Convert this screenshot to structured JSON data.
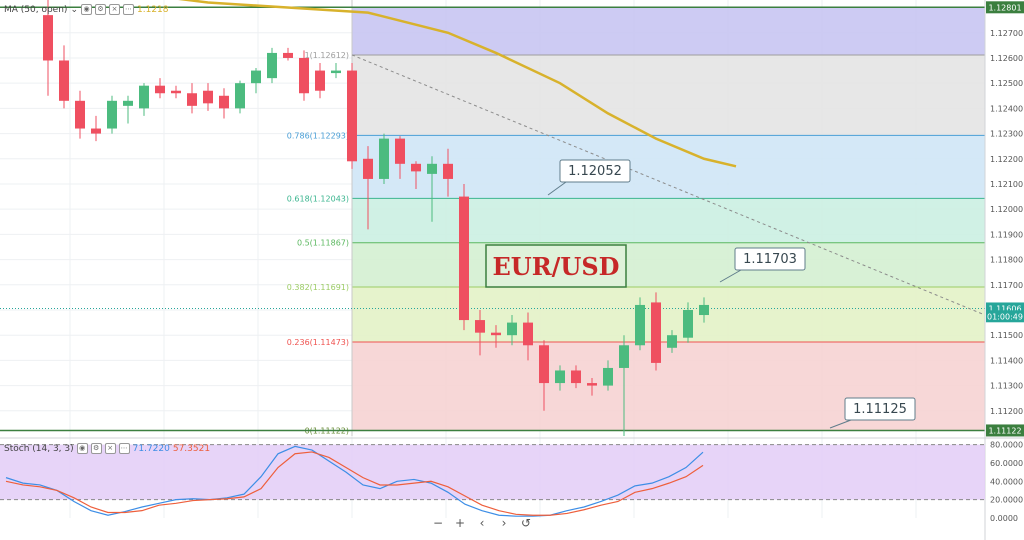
{
  "main_legend": {
    "indicator": "MA (50, open)",
    "value": "1.1218",
    "value_color": "#d8b22c"
  },
  "stoch_legend": {
    "indicator": "Stoch (14, 3, 3)",
    "k_value": "71.7220",
    "d_value": "57.3521",
    "k_color": "#3d8ee6",
    "d_color": "#ee5f3c"
  },
  "chart_data": [
    {
      "type": "candlestick",
      "title": "EUR/USD",
      "ylim": [
        1.111,
        1.1283
      ],
      "y_ticks": [
        "1.12700",
        "1.12600",
        "1.12500",
        "1.12400",
        "1.12300",
        "1.12200",
        "1.12100",
        "1.12000",
        "1.11900",
        "1.11800",
        "1.11700",
        "1.11600",
        "1.11500",
        "1.11400",
        "1.11300",
        "1.11200"
      ],
      "price_tags": [
        {
          "label": "1.12801",
          "value": 1.12801
        },
        {
          "label": "1.11606",
          "value": 1.11606
        },
        {
          "label": "01:00:49",
          "value": 1.11575
        },
        {
          "label": "1.11122",
          "value": 1.11122
        }
      ],
      "fib_levels": [
        {
          "label": "1(1.12612)",
          "value": 1.12612,
          "color": "#9e9e9e"
        },
        {
          "label": "0.786(1.12293)",
          "value": 1.12293,
          "color": "#4a9fd6"
        },
        {
          "label": "0.618(1.12043)",
          "value": 1.12043,
          "color": "#3bb58f"
        },
        {
          "label": "0.5(1.11867)",
          "value": 1.11867,
          "color": "#5cb860"
        },
        {
          "label": "0.382(1.11691)",
          "value": 1.11691,
          "color": "#9ccc65"
        },
        {
          "label": "0.236(1.11473)",
          "value": 1.11473,
          "color": "#ef5350"
        },
        {
          "label": "0(1.11122)",
          "value": 1.11122,
          "color": "#6a8e3a"
        }
      ],
      "callouts": [
        {
          "label": "1.12052",
          "value": 1.12052
        },
        {
          "label": "1.11703",
          "value": 1.11703
        },
        {
          "label": "1.11125",
          "value": 1.11125
        }
      ],
      "ma": [
        [
          0,
          1.129
        ],
        [
          10,
          1.1282
        ],
        [
          20,
          1.1278
        ],
        [
          25,
          1.127
        ],
        [
          28,
          1.1262
        ],
        [
          32,
          1.125
        ],
        [
          35,
          1.1238
        ],
        [
          38,
          1.1228
        ],
        [
          41,
          1.122
        ],
        [
          43,
          1.1217
        ]
      ],
      "candles": [
        {
          "o": 1.1277,
          "h": 1.1285,
          "l": 1.1245,
          "c": 1.1259
        },
        {
          "o": 1.1259,
          "h": 1.1265,
          "l": 1.124,
          "c": 1.1243
        },
        {
          "o": 1.1243,
          "h": 1.1247,
          "l": 1.1228,
          "c": 1.1232
        },
        {
          "o": 1.1232,
          "h": 1.1237,
          "l": 1.1227,
          "c": 1.123
        },
        {
          "o": 1.1232,
          "h": 1.1245,
          "l": 1.123,
          "c": 1.1243
        },
        {
          "o": 1.1241,
          "h": 1.1245,
          "l": 1.1234,
          "c": 1.1243
        },
        {
          "o": 1.124,
          "h": 1.125,
          "l": 1.1237,
          "c": 1.1249
        },
        {
          "o": 1.1249,
          "h": 1.1252,
          "l": 1.1244,
          "c": 1.1246
        },
        {
          "o": 1.1247,
          "h": 1.1249,
          "l": 1.1244,
          "c": 1.1246
        },
        {
          "o": 1.1246,
          "h": 1.125,
          "l": 1.1238,
          "c": 1.1241
        },
        {
          "o": 1.1247,
          "h": 1.125,
          "l": 1.1239,
          "c": 1.1242
        },
        {
          "o": 1.1245,
          "h": 1.1248,
          "l": 1.1236,
          "c": 1.124
        },
        {
          "o": 1.124,
          "h": 1.1251,
          "l": 1.1238,
          "c": 1.125
        },
        {
          "o": 1.125,
          "h": 1.1256,
          "l": 1.1246,
          "c": 1.1255
        },
        {
          "o": 1.1252,
          "h": 1.1264,
          "l": 1.125,
          "c": 1.1262
        },
        {
          "o": 1.1262,
          "h": 1.1264,
          "l": 1.1259,
          "c": 1.126
        },
        {
          "o": 1.126,
          "h": 1.1263,
          "l": 1.1243,
          "c": 1.1246
        },
        {
          "o": 1.1255,
          "h": 1.1258,
          "l": 1.1244,
          "c": 1.1247
        },
        {
          "o": 1.1254,
          "h": 1.1258,
          "l": 1.1252,
          "c": 1.1255
        },
        {
          "o": 1.1255,
          "h": 1.1258,
          "l": 1.1216,
          "c": 1.1219
        },
        {
          "o": 1.122,
          "h": 1.1225,
          "l": 1.1192,
          "c": 1.1212
        },
        {
          "o": 1.1212,
          "h": 1.123,
          "l": 1.121,
          "c": 1.1228
        },
        {
          "o": 1.1228,
          "h": 1.1229,
          "l": 1.1212,
          "c": 1.1218
        },
        {
          "o": 1.1218,
          "h": 1.1219,
          "l": 1.1208,
          "c": 1.1215
        },
        {
          "o": 1.1214,
          "h": 1.1221,
          "l": 1.1195,
          "c": 1.1218
        },
        {
          "o": 1.1218,
          "h": 1.1224,
          "l": 1.1205,
          "c": 1.1212
        },
        {
          "o": 1.1205,
          "h": 1.121,
          "l": 1.1152,
          "c": 1.1156
        },
        {
          "o": 1.1156,
          "h": 1.116,
          "l": 1.1142,
          "c": 1.1151
        },
        {
          "o": 1.1151,
          "h": 1.1154,
          "l": 1.1145,
          "c": 1.115
        },
        {
          "o": 1.115,
          "h": 1.1158,
          "l": 1.1146,
          "c": 1.1155
        },
        {
          "o": 1.1155,
          "h": 1.1159,
          "l": 1.114,
          "c": 1.1146
        },
        {
          "o": 1.1146,
          "h": 1.1148,
          "l": 1.112,
          "c": 1.1131
        },
        {
          "o": 1.1131,
          "h": 1.1138,
          "l": 1.1128,
          "c": 1.1136
        },
        {
          "o": 1.1136,
          "h": 1.1138,
          "l": 1.1129,
          "c": 1.1131
        },
        {
          "o": 1.1131,
          "h": 1.1133,
          "l": 1.1126,
          "c": 1.113
        },
        {
          "o": 1.113,
          "h": 1.114,
          "l": 1.1128,
          "c": 1.1137
        },
        {
          "o": 1.1137,
          "h": 1.115,
          "l": 1.111,
          "c": 1.1146
        },
        {
          "o": 1.1146,
          "h": 1.1165,
          "l": 1.1144,
          "c": 1.1162
        },
        {
          "o": 1.1163,
          "h": 1.1167,
          "l": 1.1136,
          "c": 1.1139
        },
        {
          "o": 1.1145,
          "h": 1.1152,
          "l": 1.1143,
          "c": 1.115
        },
        {
          "o": 1.1149,
          "h": 1.1163,
          "l": 1.1147,
          "c": 1.116
        },
        {
          "o": 1.1158,
          "h": 1.1165,
          "l": 1.1155,
          "c": 1.1162
        }
      ]
    },
    {
      "type": "line",
      "title": "Stoch (14, 3, 3)",
      "ylim": [
        0,
        85
      ],
      "y_ticks": [
        "80.0000",
        "60.0000",
        "40.0000",
        "20.0000",
        "0.0000"
      ],
      "series": [
        {
          "name": "%K",
          "values": [
            44,
            38,
            36,
            30,
            18,
            8,
            3,
            7,
            12,
            16,
            20,
            21,
            20,
            22,
            26,
            45,
            70,
            78,
            74,
            62,
            50,
            36,
            32,
            40,
            42,
            38,
            28,
            15,
            8,
            3,
            2,
            2,
            3,
            8,
            12,
            18,
            25,
            35,
            38,
            45,
            55,
            71.72
          ]
        },
        {
          "name": "%D",
          "values": [
            40,
            36,
            34,
            30,
            22,
            12,
            6,
            6,
            8,
            14,
            16,
            19,
            20,
            21,
            23,
            32,
            55,
            70,
            72,
            66,
            55,
            44,
            36,
            36,
            38,
            40,
            34,
            24,
            14,
            8,
            4,
            3,
            3,
            5,
            9,
            14,
            18,
            28,
            32,
            38,
            45,
            57.35
          ]
        }
      ]
    }
  ]
}
